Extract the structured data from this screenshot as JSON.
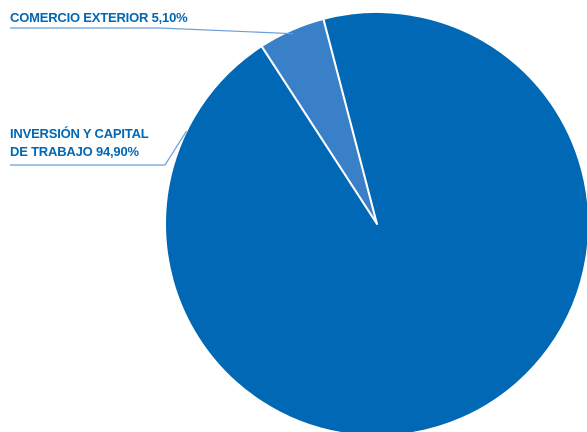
{
  "chart_data": {
    "type": "pie",
    "slices": [
      {
        "label": "COMERCIO EXTERIOR",
        "value": 5.1,
        "value_text": "5,10%",
        "color": "#3a80c8"
      },
      {
        "label_lines": [
          "INVERSIÓN Y CAPITAL",
          "DE TRABAJO"
        ],
        "value": 94.9,
        "value_text": "94,90%",
        "color": "#0068b4"
      }
    ],
    "label_color": "#0068b4",
    "leader_color": "#6a9fd6",
    "edge_color": "#ffffff"
  }
}
